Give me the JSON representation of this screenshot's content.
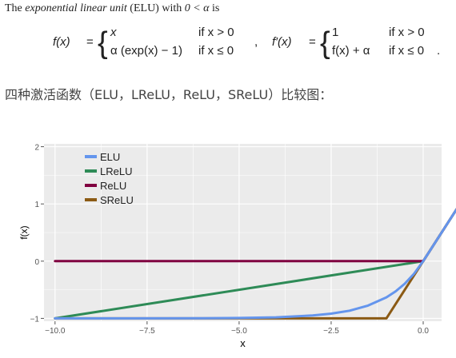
{
  "intro": {
    "prefix": "The",
    "italic": "exponential linear unit",
    "middle": "(ELU) with",
    "condition": "0 < α",
    "suffix": "is"
  },
  "formula": {
    "lhs1": "f(x)",
    "eq": "=",
    "case1_expr": "x",
    "case1_cond": "if x > 0",
    "case2_expr": "α (exp(x) − 1)",
    "case2_cond": "if x ≤ 0",
    "comma": ",",
    "lhs2": "f′(x)",
    "dcase1_expr": "1",
    "dcase1_cond": "if x > 0",
    "dcase2_expr": "f(x) + α",
    "dcase2_cond": "if x ≤ 0",
    "period": "."
  },
  "heading": "四种激活函数（ELU，LReLU，ReLU，SReLU）比较图：",
  "colors": {
    "ELU": "#6495ed",
    "LReLU": "#2e8b57",
    "ReLU": "#800040",
    "SReLU": "#8b5a14",
    "panel": "#ebebeb",
    "grid": "#ffffff"
  },
  "chart_data": {
    "type": "line",
    "title": "",
    "xlabel": "x",
    "ylabel": "f(x)",
    "xlim": [
      -10.3,
      0.5
    ],
    "ylim": [
      -1.05,
      2.05
    ],
    "xticks": [
      -10.0,
      -7.5,
      -5.0,
      -2.5,
      0.0
    ],
    "xtick_labels": [
      "−10.0",
      "−7.5",
      "−5.0",
      "−2.5",
      "0.0"
    ],
    "yticks": [
      -1,
      0,
      1,
      2
    ],
    "ytick_labels": [
      "−1",
      "0",
      "1",
      "2"
    ],
    "grid": true,
    "legend_position": "top-left",
    "series": [
      {
        "name": "ELU",
        "x": [
          -10,
          -8,
          -6,
          -5,
          -4,
          -3,
          -2.5,
          -2,
          -1.5,
          -1,
          -0.75,
          -0.5,
          -0.25,
          0,
          2
        ],
        "y": [
          -1.0,
          -1.0,
          -0.998,
          -0.993,
          -0.982,
          -0.95,
          -0.918,
          -0.865,
          -0.777,
          -0.632,
          -0.528,
          -0.393,
          -0.221,
          0,
          2
        ]
      },
      {
        "name": "LReLU",
        "x": [
          -10,
          0,
          2
        ],
        "y": [
          -1,
          0,
          2
        ]
      },
      {
        "name": "ReLU",
        "x": [
          -10,
          0,
          2
        ],
        "y": [
          0,
          0,
          2
        ]
      },
      {
        "name": "SReLU",
        "x": [
          -10,
          -1,
          0,
          2
        ],
        "y": [
          -1,
          -1,
          0,
          2
        ]
      }
    ]
  }
}
